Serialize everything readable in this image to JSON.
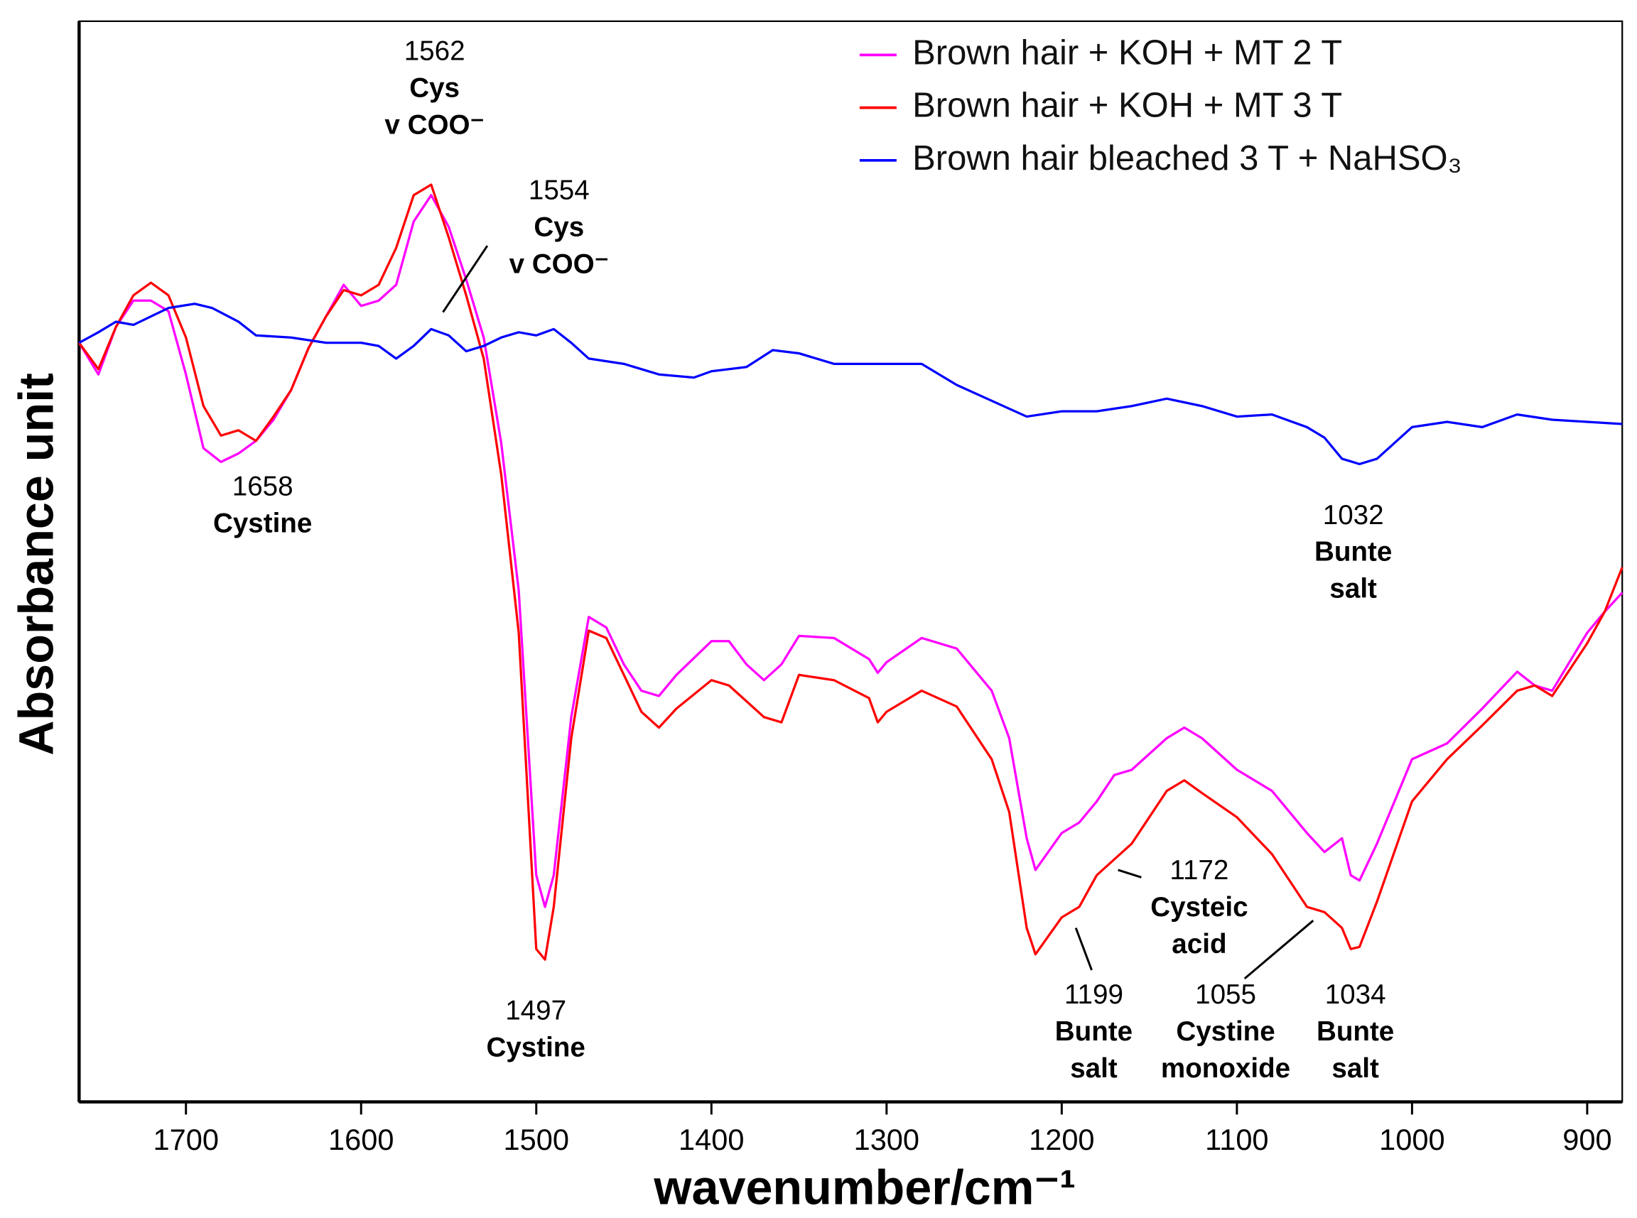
{
  "chart_data": {
    "type": "line",
    "xlabel": "wavenumber/cm⁻¹",
    "ylabel": "Absorbance unit",
    "xlim": [
      1761,
      880
    ],
    "ylim": [
      0,
      102.5
    ],
    "xticks": [
      1700,
      1600,
      1500,
      1400,
      1300,
      1200,
      1100,
      1000,
      900
    ],
    "legend": "upper right",
    "series": [
      {
        "name": "Brown hair + KOH + MT 2 T",
        "color": "#ff00ff",
        "x": [
          1761,
          1750,
          1740,
          1730,
          1720,
          1710,
          1700,
          1690,
          1680,
          1670,
          1660,
          1650,
          1640,
          1630,
          1620,
          1610,
          1600,
          1590,
          1580,
          1570,
          1560,
          1550,
          1540,
          1530,
          1520,
          1510,
          1500,
          1495,
          1490,
          1480,
          1470,
          1460,
          1450,
          1440,
          1430,
          1420,
          1400,
          1390,
          1380,
          1370,
          1360,
          1350,
          1330,
          1310,
          1305,
          1300,
          1280,
          1260,
          1240,
          1230,
          1220,
          1215,
          1200,
          1190,
          1180,
          1170,
          1160,
          1150,
          1140,
          1130,
          1120,
          1100,
          1080,
          1060,
          1050,
          1040,
          1035,
          1030,
          1020,
          1000,
          980,
          960,
          940,
          930,
          920,
          900,
          890,
          880
        ],
        "values": [
          72.0,
          69.0,
          73.5,
          76.0,
          76.0,
          75.0,
          69.0,
          62.0,
          60.7,
          61.5,
          62.7,
          64.7,
          67.5,
          71.5,
          74.5,
          77.5,
          75.5,
          76.0,
          77.5,
          83.5,
          86.0,
          83.0,
          78.0,
          72.5,
          62.5,
          48.5,
          21.5,
          18.5,
          21.5,
          36.5,
          46.0,
          45.0,
          41.5,
          39.0,
          38.5,
          40.5,
          43.7,
          43.7,
          41.5,
          40.0,
          41.5,
          44.2,
          44.0,
          42.0,
          40.7,
          41.7,
          44.0,
          43.0,
          39.0,
          34.5,
          25.0,
          22.0,
          25.5,
          26.5,
          28.5,
          31.0,
          31.5,
          33.0,
          34.5,
          35.5,
          34.5,
          31.5,
          29.5,
          25.5,
          23.7,
          25.0,
          21.5,
          21.0,
          24.5,
          32.5,
          34.0,
          37.3,
          40.8,
          39.5,
          39.0,
          44.5,
          46.5,
          48.3
        ]
      },
      {
        "name": "Brown hair + KOH + MT 3 T",
        "color": "#ff0000",
        "x": [
          1761,
          1750,
          1740,
          1730,
          1720,
          1710,
          1700,
          1690,
          1680,
          1670,
          1660,
          1650,
          1640,
          1630,
          1620,
          1610,
          1600,
          1590,
          1580,
          1570,
          1560,
          1550,
          1540,
          1530,
          1520,
          1510,
          1500,
          1495,
          1490,
          1480,
          1470,
          1460,
          1450,
          1440,
          1430,
          1420,
          1400,
          1390,
          1380,
          1370,
          1360,
          1350,
          1330,
          1310,
          1305,
          1300,
          1280,
          1260,
          1240,
          1230,
          1220,
          1215,
          1200,
          1190,
          1180,
          1170,
          1160,
          1150,
          1140,
          1130,
          1120,
          1100,
          1080,
          1060,
          1050,
          1040,
          1035,
          1030,
          1020,
          1000,
          980,
          960,
          940,
          930,
          920,
          900,
          890,
          880
        ],
        "values": [
          72.0,
          69.5,
          73.5,
          76.5,
          77.7,
          76.5,
          72.5,
          66.0,
          63.2,
          63.7,
          62.7,
          65.0,
          67.5,
          71.5,
          74.5,
          77.0,
          76.5,
          77.5,
          81.0,
          86.0,
          87.0,
          82.0,
          76.5,
          70.5,
          59.5,
          44.5,
          14.5,
          13.5,
          18.5,
          34.5,
          44.7,
          44.0,
          40.5,
          37.0,
          35.5,
          37.3,
          40.0,
          39.5,
          38.0,
          36.5,
          36.0,
          40.5,
          40.0,
          38.3,
          36.0,
          37.0,
          39.0,
          37.5,
          32.5,
          27.5,
          16.5,
          14.0,
          17.5,
          18.5,
          21.5,
          23.0,
          24.5,
          27.0,
          29.5,
          30.5,
          29.3,
          27.0,
          23.5,
          18.5,
          18.0,
          16.5,
          14.5,
          14.7,
          19.0,
          28.5,
          32.5,
          35.7,
          39.0,
          39.5,
          38.5,
          43.5,
          46.5,
          50.7
        ]
      },
      {
        "name": "Brown hair bleached 3 T + NaHSO₃",
        "color": "#0000ff",
        "x": [
          1761,
          1750,
          1740,
          1730,
          1720,
          1710,
          1695,
          1685,
          1670,
          1660,
          1640,
          1620,
          1600,
          1590,
          1580,
          1570,
          1560,
          1550,
          1540,
          1530,
          1520,
          1510,
          1500,
          1490,
          1480,
          1470,
          1450,
          1430,
          1410,
          1400,
          1380,
          1365,
          1350,
          1330,
          1300,
          1280,
          1260,
          1240,
          1220,
          1200,
          1180,
          1160,
          1140,
          1120,
          1100,
          1080,
          1060,
          1050,
          1040,
          1030,
          1020,
          1010,
          1000,
          980,
          960,
          940,
          920,
          900,
          880
        ],
        "values": [
          72.0,
          73.0,
          74.0,
          73.7,
          74.5,
          75.3,
          75.7,
          75.3,
          74.0,
          72.7,
          72.5,
          72.0,
          72.0,
          71.7,
          70.5,
          71.7,
          73.3,
          72.7,
          71.2,
          71.7,
          72.5,
          73.0,
          72.7,
          73.3,
          72.0,
          70.5,
          70.0,
          69.0,
          68.7,
          69.3,
          69.7,
          71.3,
          71.0,
          70.0,
          70.0,
          70.0,
          68.0,
          66.5,
          65.0,
          65.5,
          65.5,
          66.0,
          66.7,
          66.0,
          65.0,
          65.2,
          64.0,
          63.0,
          61.0,
          60.5,
          61.0,
          62.5,
          64.0,
          64.5,
          64.0,
          65.2,
          64.7,
          64.5,
          64.3
        ]
      }
    ],
    "annotations": [
      {
        "number": "1562",
        "label": [
          "Cys",
          "v COO⁻"
        ]
      },
      {
        "number": "1554",
        "label": [
          "Cys",
          "v COO⁻"
        ]
      },
      {
        "number": "1658",
        "label": [
          "Cystine"
        ]
      },
      {
        "number": "1497",
        "label": [
          "Cystine"
        ]
      },
      {
        "number": "1032",
        "label": [
          "Bunte",
          "salt"
        ]
      },
      {
        "number": "1172",
        "label": [
          "Cysteic",
          "acid"
        ]
      },
      {
        "number": "1199",
        "label": [
          "Bunte",
          "salt"
        ]
      },
      {
        "number": "1055",
        "label": [
          "Cystine",
          "monoxide"
        ]
      },
      {
        "number": "1034",
        "label": [
          "Bunte",
          "salt"
        ]
      }
    ]
  }
}
